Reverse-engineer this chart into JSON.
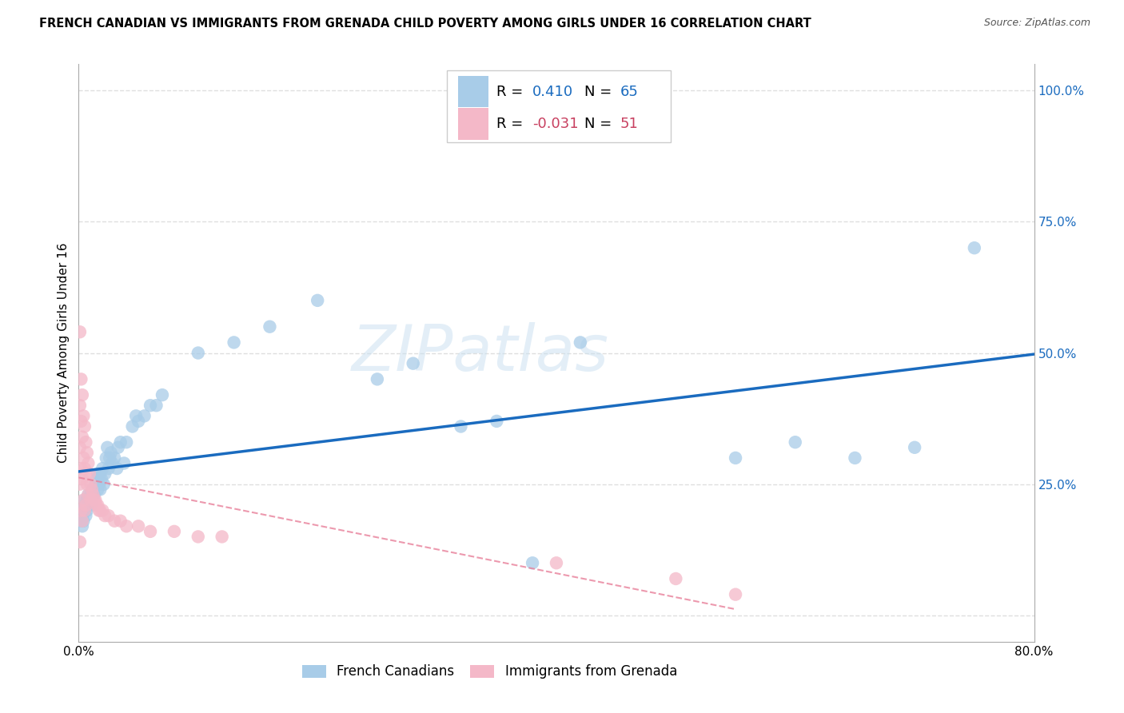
{
  "title": "FRENCH CANADIAN VS IMMIGRANTS FROM GRENADA CHILD POVERTY AMONG GIRLS UNDER 16 CORRELATION CHART",
  "source": "Source: ZipAtlas.com",
  "ylabel": "Child Poverty Among Girls Under 16",
  "R_blue": 0.41,
  "N_blue": 65,
  "R_pink": -0.031,
  "N_pink": 51,
  "blue_color": "#a8cce8",
  "pink_color": "#f4b8c8",
  "trend_blue": "#1a6bbf",
  "trend_pink": "#e8809a",
  "text_blue": "#1a6bbf",
  "text_pink": "#c84060",
  "watermark_color": "#c8dff0",
  "watermark_text": "ZIPatlas",
  "blue_x": [
    0.001,
    0.002,
    0.003,
    0.003,
    0.004,
    0.004,
    0.005,
    0.005,
    0.006,
    0.006,
    0.007,
    0.007,
    0.008,
    0.008,
    0.009,
    0.01,
    0.01,
    0.011,
    0.012,
    0.013,
    0.014,
    0.015,
    0.016,
    0.016,
    0.017,
    0.018,
    0.018,
    0.019,
    0.02,
    0.021,
    0.022,
    0.023,
    0.024,
    0.025,
    0.026,
    0.027,
    0.028,
    0.03,
    0.032,
    0.033,
    0.035,
    0.038,
    0.04,
    0.045,
    0.048,
    0.05,
    0.055,
    0.06,
    0.065,
    0.07,
    0.1,
    0.13,
    0.16,
    0.2,
    0.25,
    0.28,
    0.32,
    0.35,
    0.38,
    0.42,
    0.55,
    0.6,
    0.65,
    0.7,
    0.75
  ],
  "blue_y": [
    0.2,
    0.18,
    0.17,
    0.19,
    0.2,
    0.18,
    0.2,
    0.22,
    0.19,
    0.21,
    0.2,
    0.22,
    0.21,
    0.23,
    0.22,
    0.23,
    0.21,
    0.22,
    0.24,
    0.23,
    0.25,
    0.26,
    0.24,
    0.27,
    0.25,
    0.27,
    0.24,
    0.26,
    0.28,
    0.25,
    0.27,
    0.3,
    0.32,
    0.28,
    0.3,
    0.31,
    0.29,
    0.3,
    0.28,
    0.32,
    0.33,
    0.29,
    0.33,
    0.36,
    0.38,
    0.37,
    0.38,
    0.4,
    0.4,
    0.42,
    0.5,
    0.52,
    0.55,
    0.6,
    0.45,
    0.48,
    0.36,
    0.37,
    0.1,
    0.52,
    0.3,
    0.33,
    0.3,
    0.32,
    0.7
  ],
  "pink_x": [
    0.001,
    0.001,
    0.001,
    0.001,
    0.001,
    0.002,
    0.002,
    0.002,
    0.002,
    0.003,
    0.003,
    0.003,
    0.003,
    0.004,
    0.004,
    0.004,
    0.005,
    0.005,
    0.005,
    0.006,
    0.006,
    0.006,
    0.007,
    0.007,
    0.008,
    0.008,
    0.009,
    0.01,
    0.01,
    0.011,
    0.012,
    0.013,
    0.014,
    0.015,
    0.016,
    0.017,
    0.018,
    0.02,
    0.022,
    0.025,
    0.03,
    0.035,
    0.04,
    0.05,
    0.06,
    0.08,
    0.1,
    0.12,
    0.4,
    0.5,
    0.55
  ],
  "pink_y": [
    0.54,
    0.4,
    0.32,
    0.25,
    0.14,
    0.45,
    0.37,
    0.28,
    0.2,
    0.42,
    0.34,
    0.26,
    0.18,
    0.38,
    0.3,
    0.22,
    0.36,
    0.28,
    0.2,
    0.33,
    0.27,
    0.21,
    0.31,
    0.25,
    0.29,
    0.23,
    0.27,
    0.25,
    0.22,
    0.24,
    0.23,
    0.22,
    0.22,
    0.21,
    0.21,
    0.2,
    0.2,
    0.2,
    0.19,
    0.19,
    0.18,
    0.18,
    0.17,
    0.17,
    0.16,
    0.16,
    0.15,
    0.15,
    0.1,
    0.07,
    0.04
  ],
  "xlim": [
    0.0,
    0.8
  ],
  "ylim": [
    -0.05,
    1.05
  ],
  "xticks": [
    0.0,
    0.1,
    0.2,
    0.3,
    0.4,
    0.5,
    0.6,
    0.7,
    0.8
  ],
  "xtick_labels": [
    "0.0%",
    "",
    "",
    "",
    "",
    "",
    "",
    "",
    "80.0%"
  ],
  "ytick_right": [
    0.0,
    0.25,
    0.5,
    0.75,
    1.0
  ],
  "ytick_right_labels": [
    "",
    "25.0%",
    "50.0%",
    "75.0%",
    "100.0%"
  ],
  "grid_color": "#d8d8d8",
  "background_color": "#ffffff",
  "legend_entries": [
    {
      "label": "French Canadians",
      "color": "#a8cce8"
    },
    {
      "label": "Immigrants from Grenada",
      "color": "#f4b8c8"
    }
  ]
}
